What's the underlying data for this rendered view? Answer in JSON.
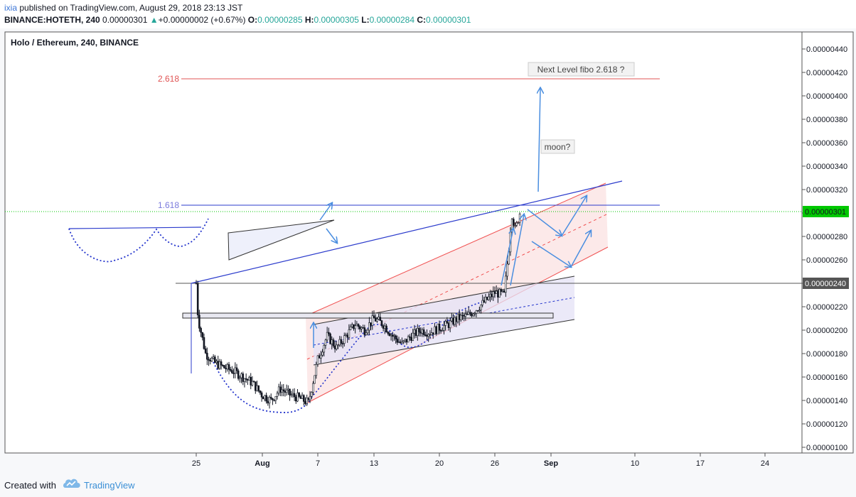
{
  "header": {
    "user": "ixia",
    "published_text": "published on TradingView.com, August 29, 2018 23:13 JST",
    "symbol": "BINANCE:HOTETH, 240",
    "last": "0.00000301",
    "change_arrow": "▲",
    "change": "+0.00000002 (+0.67%)",
    "o_label": "O:",
    "o_value": "0.00000285",
    "h_label": "H:",
    "h_value": "0.00000305",
    "l_label": "L:",
    "l_value": "0.00000284",
    "c_label": "C:",
    "c_value": "0.00000301"
  },
  "footer": {
    "created_with": "Created with",
    "brand": "TradingView",
    "logo_icon": "tradingview-cloud-icon"
  },
  "colors": {
    "candle": "#131722",
    "blue_line": "#2b3bcc",
    "fib_red": "#e05454",
    "channel_red": "#f05050",
    "channel_fill": "#fbe3e3",
    "purple_fill": "#e4e2f6",
    "arrow_blue": "#4a8ee0",
    "dotted_blue": "#2233cc",
    "price_green": "#26a69a",
    "last_price_bg": "#00c800"
  },
  "chart_data": {
    "type": "candlestick",
    "title": "Holo / Ethereum, 240, BINANCE",
    "x_ticks": [
      "25",
      "Aug",
      "7",
      "13",
      "20",
      "26",
      "Sep",
      "10",
      "17",
      "24"
    ],
    "y_ticks": [
      "0.00000440",
      "0.00000420",
      "0.00000400",
      "0.00000380",
      "0.00000360",
      "0.00000340",
      "0.00000320",
      "0.00000300",
      "0.00000280",
      "0.00000260",
      "0.00000240",
      "0.00000220",
      "0.00000200",
      "0.00000180",
      "0.00000160",
      "0.00000140",
      "0.00000120",
      "0.00000100"
    ],
    "ylim": [
      9.5e-07,
      4.55e-06
    ],
    "last_price_label": "0.00000301",
    "marked_price_label": "0.00000240",
    "fib_levels": [
      {
        "label": "2.618",
        "value": 4.145e-06
      },
      {
        "label": "1.618",
        "value": 3.065e-06
      }
    ],
    "annotations": [
      {
        "text": "Next Level fibo 2.618 ?"
      },
      {
        "text": "moon?"
      }
    ],
    "price_path": [
      [
        25,
        2.4e-06
      ],
      [
        25.2,
        2.1e-06
      ],
      [
        26,
        1.8e-06
      ],
      [
        27,
        1.72e-06
      ],
      [
        28,
        1.68e-06
      ],
      [
        29,
        1.65e-06
      ],
      [
        30,
        1.6e-06
      ],
      [
        31,
        1.55e-06
      ],
      [
        32,
        1.45e-06
      ],
      [
        33,
        1.4e-06
      ],
      [
        34,
        1.5e-06
      ],
      [
        35,
        1.45e-06
      ],
      [
        36,
        1.42e-06
      ],
      [
        37,
        1.38e-06
      ],
      [
        38,
        1.75e-06
      ],
      [
        39,
        1.95e-06
      ],
      [
        40,
        1.85e-06
      ],
      [
        41,
        1.95e-06
      ],
      [
        42,
        2.05e-06
      ],
      [
        43,
        2e-06
      ],
      [
        44,
        2.1e-06
      ],
      [
        45,
        2.05e-06
      ],
      [
        46,
        1.95e-06
      ],
      [
        47,
        1.88e-06
      ],
      [
        48,
        1.95e-06
      ],
      [
        49,
        2e-06
      ],
      [
        50,
        1.98e-06
      ],
      [
        51,
        2.02e-06
      ],
      [
        52,
        2.05e-06
      ],
      [
        53,
        2.1e-06
      ],
      [
        54,
        2.12e-06
      ],
      [
        55,
        2.18e-06
      ],
      [
        56,
        2.25e-06
      ],
      [
        57,
        2.32e-06
      ],
      [
        58,
        2.3e-06
      ],
      [
        58.5,
        2.7e-06
      ],
      [
        58.8,
        3e-06
      ],
      [
        59.2,
        2.85e-06
      ],
      [
        59.5,
        2.95e-06
      ],
      [
        59.7,
        3.01e-06
      ]
    ]
  }
}
